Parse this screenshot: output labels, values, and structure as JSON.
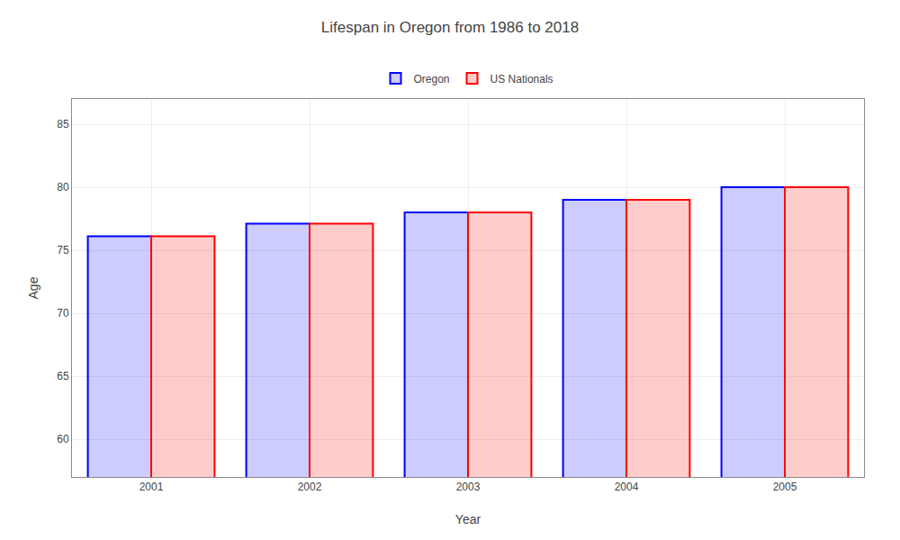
{
  "chart_data": {
    "type": "bar",
    "title": "Lifespan in Oregon from 1986 to 2018",
    "xlabel": "Year",
    "ylabel": "Age",
    "categories": [
      "2001",
      "2002",
      "2003",
      "2004",
      "2005"
    ],
    "series": [
      {
        "name": "Oregon",
        "color": "#0000ff",
        "values": [
          76.1,
          77.1,
          78.0,
          79.0,
          80.0
        ]
      },
      {
        "name": "US Nationals",
        "color": "#ff0000",
        "values": [
          76.1,
          77.1,
          78.0,
          79.0,
          80.0
        ]
      }
    ],
    "ylim": [
      57,
      87
    ],
    "yticks": [
      60,
      65,
      70,
      75,
      80,
      85
    ],
    "grid": true,
    "legend": "top"
  }
}
